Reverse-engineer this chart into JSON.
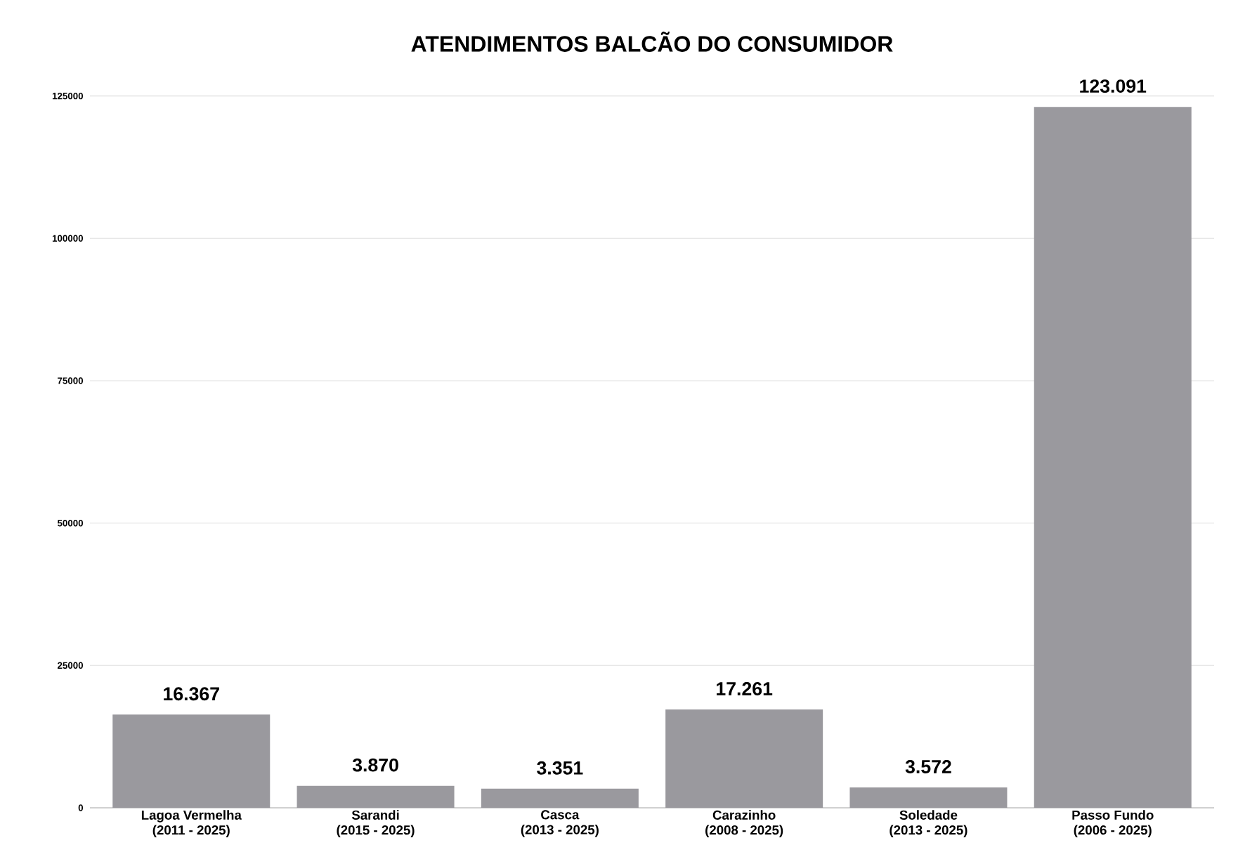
{
  "chart_data": {
    "type": "bar",
    "title": "ATENDIMENTOS BALCÃO DO CONSUMIDOR",
    "categories": [
      "Lagoa Vermelha (2011 - 2025)",
      "Sarandi (2015 - 2025)",
      "Casca (2013 - 2025)",
      "Carazinho (2008 - 2025)",
      "Soledade (2013 - 2025)",
      "Passo Fundo (2006 - 2025)"
    ],
    "values": [
      16367,
      3870,
      3351,
      17261,
      3572,
      123091
    ],
    "value_labels": [
      "16.367",
      "3.870",
      "3.351",
      "17.261",
      "3.572",
      "123.091"
    ],
    "color": "#9a999e",
    "ylim": [
      0,
      125000
    ],
    "yticks": [
      0,
      25000,
      50000,
      75000,
      100000,
      125000
    ],
    "grid": "y"
  }
}
